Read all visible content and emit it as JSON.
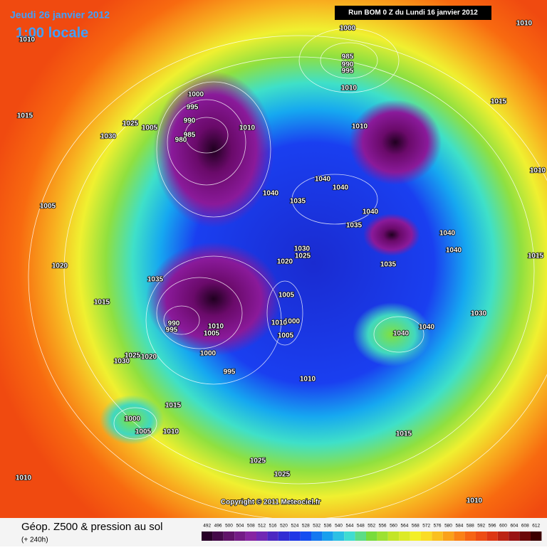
{
  "header": {
    "date": "Jeudi 26 janvier 2012",
    "time": "1:00 locale",
    "run": "Run BOM 0 Z du Lundi 16 janvier 2012"
  },
  "map": {
    "isobar_labels": [
      1000,
      1010,
      985,
      990,
      995,
      1010,
      1015,
      1010,
      1015,
      1000,
      995,
      990,
      985,
      980,
      1025,
      1005,
      1030,
      1010,
      1010,
      1040,
      1040,
      1040,
      1035,
      1040,
      1035,
      1040,
      1040,
      1030,
      1025,
      1020,
      1035,
      1010,
      1015,
      1005,
      1020,
      1035,
      1015,
      1005,
      1000,
      1010,
      1005,
      990,
      995,
      1005,
      1010,
      1030,
      1040,
      1040,
      1000,
      995,
      1025,
      1020,
      1030,
      1010,
      1015,
      1000,
      1005,
      1010,
      1015,
      1025,
      1025,
      1010,
      1010
    ],
    "copyright": "Copyright © 2011 Meteociel.fr"
  },
  "legend": {
    "title": "Géop. Z500 & pression au sol",
    "subtitle": "(+ 240h)",
    "levels": [
      492,
      496,
      500,
      504,
      508,
      512,
      516,
      520,
      524,
      528,
      532,
      536,
      540,
      544,
      548,
      552,
      556,
      560,
      564,
      568,
      572,
      576,
      580,
      584,
      588,
      592,
      596,
      600,
      604,
      608,
      612
    ]
  }
}
